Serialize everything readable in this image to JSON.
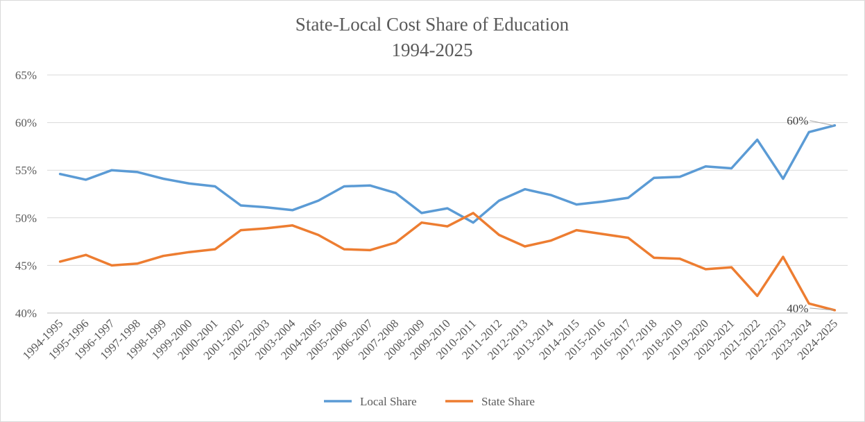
{
  "chart_data": {
    "type": "line",
    "title": "State-Local Cost Share of Education",
    "subtitle": "1994-2025",
    "xlabel": "",
    "ylabel": "",
    "ylim": [
      40,
      65
    ],
    "yticks": [
      "40%",
      "45%",
      "50%",
      "55%",
      "60%",
      "65%"
    ],
    "grid": true,
    "legend_position": "bottom",
    "categories": [
      "1994-1995",
      "1995-1996",
      "1996-1997",
      "1997-1998",
      "1998-1999",
      "1999-2000",
      "2000-2001",
      "2001-2002",
      "2002-2003",
      "2003-2004",
      "2004-2005",
      "2005-2006",
      "2006-2007",
      "2007-2008",
      "2008-2009",
      "2009-2010",
      "2010-2011",
      "2011-2012",
      "2012-2013",
      "2013-2014",
      "2014-2015",
      "2015-2016",
      "2016-2017",
      "2017-2018",
      "2018-2019",
      "2019-2020",
      "2020-2021",
      "2021-2022",
      "2022-2023",
      "2023-2024",
      "2024-2025"
    ],
    "series": [
      {
        "name": "Local Share",
        "color": "#5B9BD5",
        "values": [
          54.6,
          54.0,
          55.0,
          54.8,
          54.1,
          53.6,
          53.3,
          51.3,
          51.1,
          50.8,
          51.8,
          53.3,
          53.4,
          52.6,
          50.5,
          51.0,
          49.5,
          51.8,
          53.0,
          52.4,
          51.4,
          51.7,
          52.1,
          54.2,
          54.3,
          55.4,
          55.2,
          58.2,
          54.1,
          59.0,
          59.7
        ],
        "label_text": "60%",
        "label_index": 30
      },
      {
        "name": "State Share",
        "color": "#ED7D31",
        "values": [
          45.4,
          46.1,
          45.0,
          45.2,
          46.0,
          46.4,
          46.7,
          48.7,
          48.9,
          49.2,
          48.2,
          46.7,
          46.6,
          47.4,
          49.5,
          49.1,
          50.5,
          48.2,
          47.0,
          47.6,
          48.7,
          48.3,
          47.9,
          45.8,
          45.7,
          44.6,
          44.8,
          41.8,
          45.9,
          41.0,
          40.3
        ],
        "label_text": "40%",
        "label_index": 30
      }
    ]
  }
}
